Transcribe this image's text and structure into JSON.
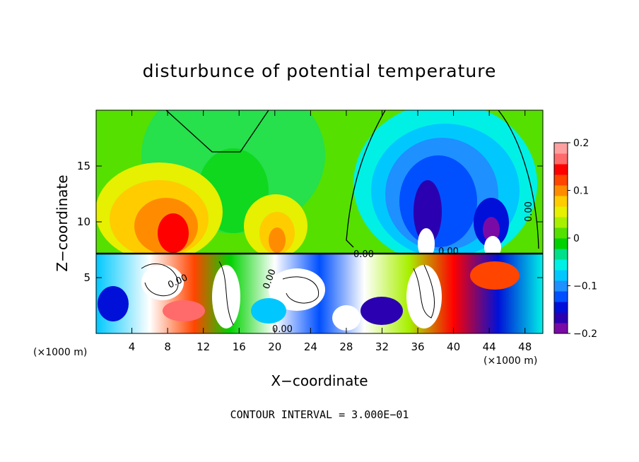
{
  "chart_data": {
    "type": "heatmap",
    "title": "disturbunce of potential temperature",
    "xlabel": "X−coordinate",
    "ylabel": "Z−coordinate",
    "x_unit": "(×1000 m)",
    "footnote": "CONTOUR INTERVAL = 3.000E−01",
    "xlim": [
      0,
      50
    ],
    "ylim": [
      0,
      20
    ],
    "x_ticks": [
      4,
      8,
      12,
      16,
      20,
      24,
      28,
      32,
      36,
      40,
      44,
      48
    ],
    "y_ticks": [
      5,
      10,
      15
    ],
    "colorbar": {
      "range": [
        -0.2,
        0.2
      ],
      "ticks": [
        0.2,
        0.1,
        0,
        -0.1,
        -0.2
      ],
      "tick_labels": [
        "0.2",
        "0.1",
        "0",
        "−0.1",
        "−0.2"
      ],
      "colors": [
        "#7a0aa6",
        "#2a00b0",
        "#0010d8",
        "#0050ff",
        "#1e90ff",
        "#00c8ff",
        "#00f0e6",
        "#00e08a",
        "#00d200",
        "#55e000",
        "#a8f000",
        "#e6f000",
        "#ffcc00",
        "#ff8c00",
        "#ff4500",
        "#ff0000",
        "#ff6a6a",
        "#ffa0a0"
      ]
    },
    "contour_labels": [
      "0.00",
      "0.00",
      "0.00",
      "0.00",
      "0.00",
      "0.00"
    ],
    "contour_interval": 0.3
  }
}
